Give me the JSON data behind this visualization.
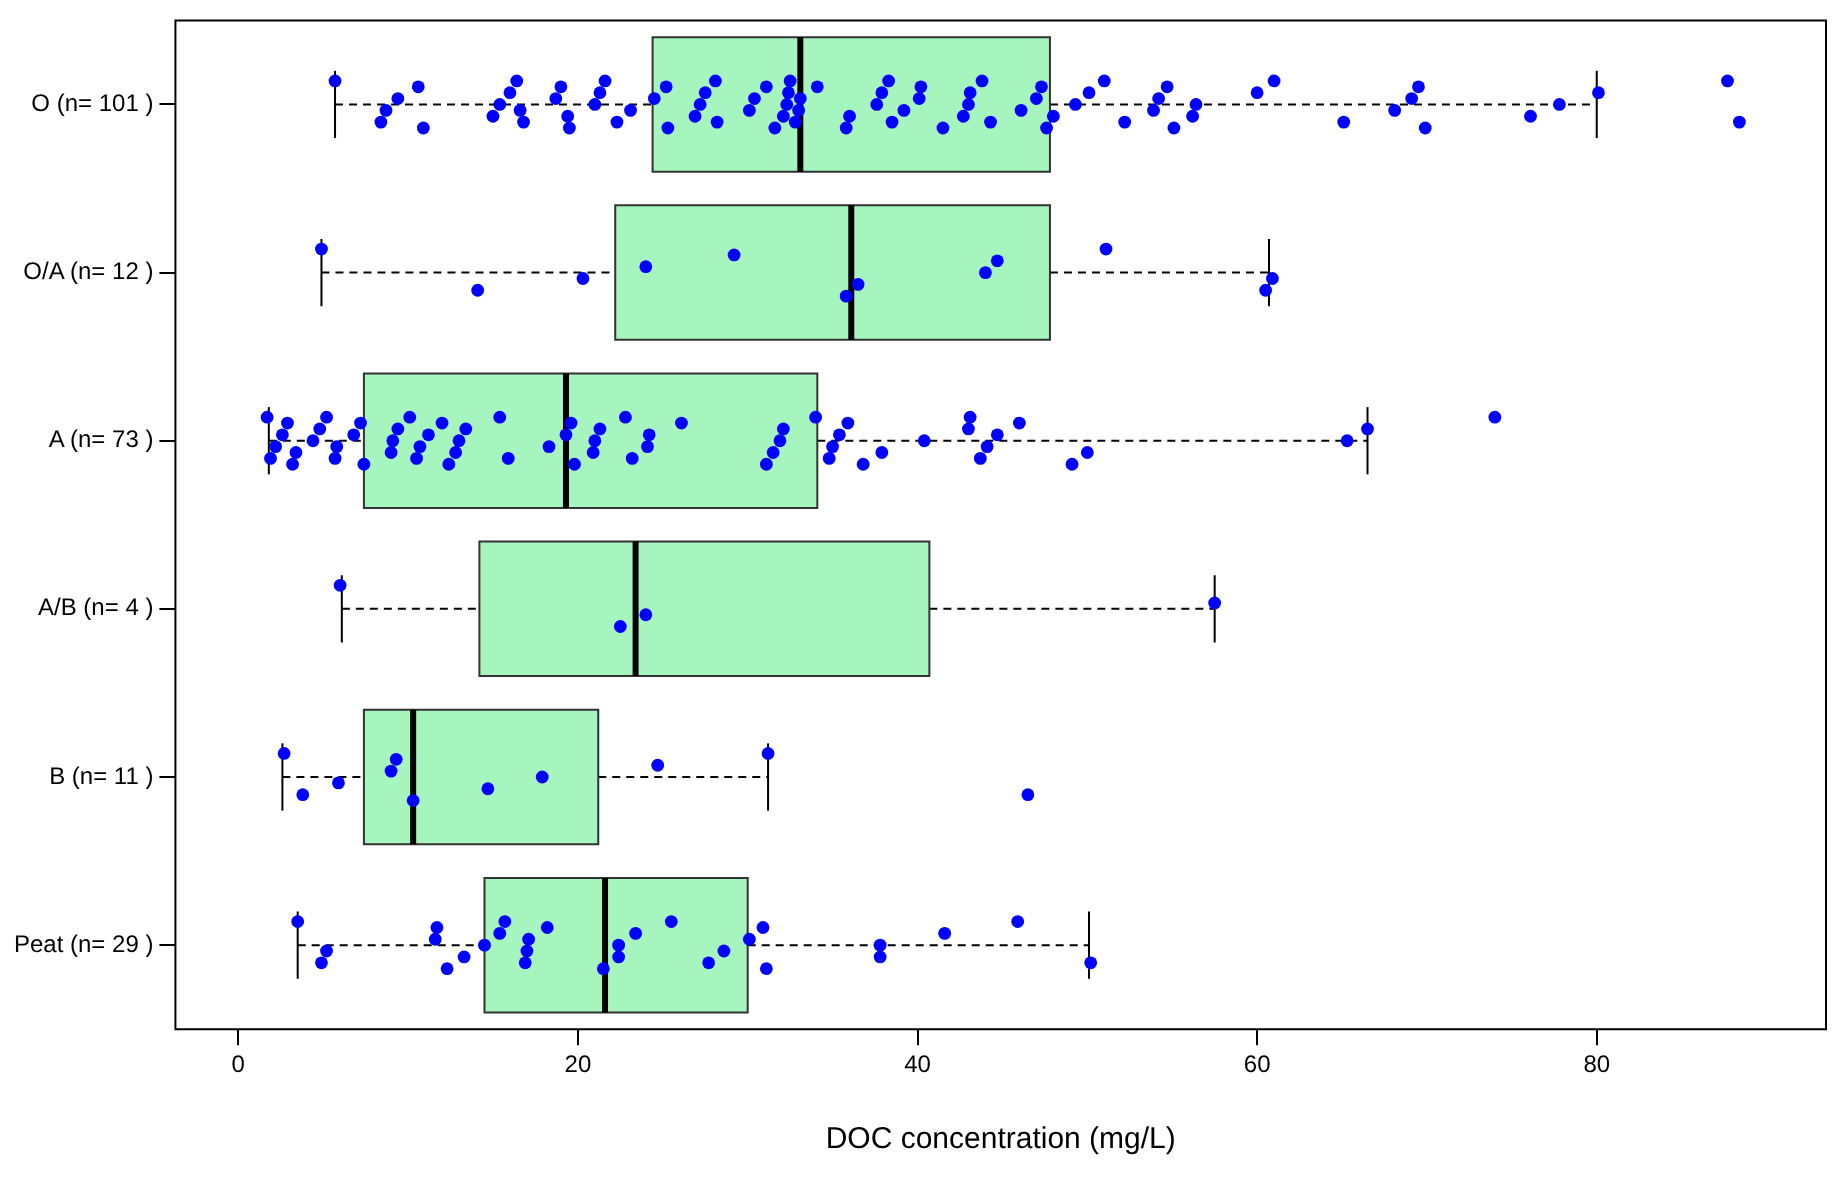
{
  "chart_data": {
    "type": "box",
    "orientation": "horizontal",
    "xlabel": "DOC concentration (mg/L)",
    "categories": [
      "O (n= 101 )",
      "O/A (n= 12 )",
      "A (n= 73 )",
      "A/B (n= 4 )",
      "B (n= 11 )",
      "Peat (n= 29 )"
    ],
    "color": "#a6f5be",
    "xlim": [
      -3.7,
      93.5
    ],
    "xticks": [
      0,
      20,
      40,
      60,
      80
    ],
    "grid": false,
    "marker": "circle",
    "boxes": [
      {
        "low": 5.7,
        "q1": 24.4,
        "median": 33.1,
        "q3": 47.8,
        "high": 80
      },
      {
        "low": 4.9,
        "q1": 22.2,
        "median": 36.1,
        "q3": 47.8,
        "high": 60.7
      },
      {
        "low": 1.8,
        "q1": 7.4,
        "median": 19.3,
        "q3": 34.1,
        "high": 66.5
      },
      {
        "low": 6.1,
        "q1": 14.2,
        "median": 23.4,
        "q3": 40.7,
        "high": 57.5
      },
      {
        "low": 2.6,
        "q1": 7.4,
        "median": 10.3,
        "q3": 21.2,
        "high": 31.2
      },
      {
        "low": 3.5,
        "q1": 14.5,
        "median": 21.6,
        "q3": 30.0,
        "high": 50.1
      }
    ],
    "series": [
      {
        "type": "scatter",
        "color": "#0000ff",
        "x": [
          "O (n= 101 )",
          "O (n= 101 )",
          "O (n= 101 )",
          "O (n= 101 )",
          "O (n= 101 )",
          "O (n= 101 )",
          "O (n= 101 )",
          "O (n= 101 )",
          "O (n= 101 )",
          "O (n= 101 )",
          "O (n= 101 )",
          "O (n= 101 )",
          "O (n= 101 )",
          "O (n= 101 )",
          "O (n= 101 )",
          "O (n= 101 )",
          "O (n= 101 )",
          "O (n= 101 )",
          "O (n= 101 )",
          "O (n= 101 )",
          "O (n= 101 )",
          "O (n= 101 )",
          "O (n= 101 )",
          "O (n= 101 )",
          "O (n= 101 )",
          "O (n= 101 )",
          "O (n= 101 )",
          "O (n= 101 )",
          "O (n= 101 )",
          "O (n= 101 )",
          "O (n= 101 )",
          "O (n= 101 )",
          "O (n= 101 )",
          "O (n= 101 )",
          "O (n= 101 )",
          "O (n= 101 )",
          "O (n= 101 )",
          "O (n= 101 )",
          "O (n= 101 )",
          "O (n= 101 )",
          "O (n= 101 )",
          "O (n= 101 )",
          "O (n= 101 )",
          "O (n= 101 )",
          "O (n= 101 )",
          "O (n= 101 )",
          "O (n= 101 )",
          "O (n= 101 )",
          "O (n= 101 )",
          "O (n= 101 )",
          "O (n= 101 )",
          "O (n= 101 )",
          "O (n= 101 )",
          "O (n= 101 )",
          "O (n= 101 )",
          "O (n= 101 )",
          "O (n= 101 )",
          "O (n= 101 )",
          "O (n= 101 )",
          "O (n= 101 )",
          "O (n= 101 )",
          "O (n= 101 )",
          "O (n= 101 )",
          "O (n= 101 )",
          "O (n= 101 )",
          "O (n= 101 )",
          "O (n= 101 )",
          "O (n= 101 )",
          "O (n= 101 )",
          "O (n= 101 )",
          "O (n= 101 )",
          "O (n= 101 )",
          "O (n= 101 )",
          "O (n= 101 )",
          "O (n= 101 )",
          "O (n= 101 )",
          "O (n= 101 )",
          "O (n= 101 )",
          "O (n= 101 )",
          "O (n= 101 )",
          "O (n= 101 )",
          "O (n= 101 )",
          "O (n= 101 )"
        ],
        "values": [
          5.7,
          8.4,
          8.7,
          9.4,
          10.6,
          10.9,
          15.0,
          15.4,
          16.0,
          16.4,
          16.8,
          16.6,
          18.7,
          19.0,
          19.5,
          19.4,
          21.0,
          21.3,
          21.6,
          22.3,
          23.1,
          24.5,
          25.2,
          25.3,
          26.9,
          27.2,
          27.5,
          28.1,
          28.2,
          30.1,
          30.4,
          31.1,
          31.6,
          32.1,
          32.3,
          32.4,
          32.5,
          32.8,
          33.0,
          33.1,
          34.1,
          35.8,
          36.0,
          37.6,
          37.9,
          38.3,
          38.5,
          39.2,
          40.1,
          40.2,
          41.5,
          42.7,
          43.0,
          43.1,
          43.8,
          44.3,
          46.1,
          47.0,
          47.3,
          47.6,
          48.0,
          49.3,
          50.1,
          51.0,
          52.2,
          53.9,
          54.2,
          54.7,
          55.1,
          56.2,
          56.4,
          60.0,
          61.0,
          65.1,
          68.1,
          69.1,
          69.5,
          69.9,
          76.1,
          77.8,
          80.1,
          87.7,
          88.4
        ]
      },
      {
        "type": "scatter",
        "color": "#0000ff",
        "x": [
          "O/A (n= 12 )",
          "O/A (n= 12 )",
          "O/A (n= 12 )",
          "O/A (n= 12 )",
          "O/A (n= 12 )",
          "O/A (n= 12 )",
          "O/A (n= 12 )",
          "O/A (n= 12 )",
          "O/A (n= 12 )",
          "O/A (n= 12 )",
          "O/A (n= 12 )",
          "O/A (n= 12 )"
        ],
        "values": [
          4.9,
          14.1,
          20.3,
          24.0,
          29.2,
          35.8,
          36.5,
          44.0,
          44.7,
          51.1,
          60.5,
          60.9
        ]
      },
      {
        "type": "scatter",
        "color": "#0000ff",
        "x": [
          "A (n= 73 )",
          "A (n= 73 )",
          "A (n= 73 )",
          "A (n= 73 )",
          "A (n= 73 )",
          "A (n= 73 )",
          "A (n= 73 )",
          "A (n= 73 )",
          "A (n= 73 )",
          "A (n= 73 )",
          "A (n= 73 )",
          "A (n= 73 )",
          "A (n= 73 )",
          "A (n= 73 )",
          "A (n= 73 )",
          "A (n= 73 )",
          "A (n= 73 )",
          "A (n= 73 )",
          "A (n= 73 )",
          "A (n= 73 )",
          "A (n= 73 )",
          "A (n= 73 )",
          "A (n= 73 )",
          "A (n= 73 )",
          "A (n= 73 )",
          "A (n= 73 )",
          "A (n= 73 )",
          "A (n= 73 )",
          "A (n= 73 )",
          "A (n= 73 )",
          "A (n= 73 )",
          "A (n= 73 )",
          "A (n= 73 )",
          "A (n= 73 )",
          "A (n= 73 )",
          "A (n= 73 )",
          "A (n= 73 )",
          "A (n= 73 )",
          "A (n= 73 )",
          "A (n= 73 )",
          "A (n= 73 )",
          "A (n= 73 )",
          "A (n= 73 )",
          "A (n= 73 )",
          "A (n= 73 )",
          "A (n= 73 )",
          "A (n= 73 )",
          "A (n= 73 )",
          "A (n= 73 )",
          "A (n= 73 )",
          "A (n= 73 )",
          "A (n= 73 )",
          "A (n= 73 )",
          "A (n= 73 )",
          "A (n= 73 )",
          "A (n= 73 )",
          "A (n= 73 )",
          "A (n= 73 )",
          "A (n= 73 )",
          "A (n= 73 )",
          "A (n= 73 )",
          "A (n= 73 )",
          "A (n= 73 )",
          "A (n= 73 )"
        ],
        "values": [
          1.7,
          1.9,
          2.2,
          2.6,
          2.9,
          3.2,
          3.4,
          4.4,
          4.8,
          5.2,
          5.7,
          5.8,
          6.8,
          7.2,
          7.4,
          9.0,
          9.1,
          9.4,
          10.1,
          10.5,
          10.7,
          11.2,
          12.0,
          12.4,
          12.8,
          13.0,
          13.4,
          15.4,
          15.9,
          18.3,
          19.3,
          19.6,
          19.8,
          20.9,
          21.0,
          21.3,
          22.8,
          23.2,
          24.1,
          24.2,
          26.1,
          31.1,
          31.5,
          31.9,
          32.1,
          34.0,
          34.8,
          35.0,
          35.4,
          35.9,
          36.8,
          37.9,
          40.4,
          43.0,
          43.1,
          43.7,
          44.1,
          44.7,
          46.0,
          49.1,
          50.0,
          65.3,
          66.5,
          74.0
        ]
      },
      {
        "type": "scatter",
        "color": "#0000ff",
        "x": [
          "A/B (n= 4 )",
          "A/B (n= 4 )",
          "A/B (n= 4 )",
          "A/B (n= 4 )"
        ],
        "values": [
          6.0,
          22.5,
          24.0,
          57.5
        ]
      },
      {
        "type": "scatter",
        "color": "#0000ff",
        "x": [
          "B (n= 11 )",
          "B (n= 11 )",
          "B (n= 11 )",
          "B (n= 11 )",
          "B (n= 11 )",
          "B (n= 11 )",
          "B (n= 11 )",
          "B (n= 11 )",
          "B (n= 11 )",
          "B (n= 11 )",
          "B (n= 11 )"
        ],
        "values": [
          2.7,
          3.8,
          5.9,
          9.0,
          9.3,
          10.3,
          14.7,
          17.9,
          24.7,
          31.2,
          46.5
        ]
      },
      {
        "type": "scatter",
        "color": "#0000ff",
        "x": [
          "Peat (n= 29 )",
          "Peat (n= 29 )",
          "Peat (n= 29 )",
          "Peat (n= 29 )",
          "Peat (n= 29 )",
          "Peat (n= 29 )",
          "Peat (n= 29 )",
          "Peat (n= 29 )",
          "Peat (n= 29 )",
          "Peat (n= 29 )",
          "Peat (n= 29 )",
          "Peat (n= 29 )",
          "Peat (n= 29 )",
          "Peat (n= 29 )",
          "Peat (n= 29 )",
          "Peat (n= 29 )",
          "Peat (n= 29 )",
          "Peat (n= 29 )",
          "Peat (n= 29 )",
          "Peat (n= 29 )",
          "Peat (n= 29 )",
          "Peat (n= 29 )",
          "Peat (n= 29 )",
          "Peat (n= 29 )",
          "Peat (n= 29 )",
          "Peat (n= 29 )",
          "Peat (n= 29 )",
          "Peat (n= 29 )",
          "Peat (n= 29 )"
        ],
        "values": [
          3.5,
          4.9,
          5.2,
          11.6,
          11.7,
          12.3,
          13.3,
          14.5,
          15.4,
          15.7,
          16.9,
          17.0,
          17.1,
          18.2,
          21.5,
          22.4,
          22.4,
          23.4,
          25.5,
          27.7,
          28.6,
          30.1,
          30.9,
          31.1,
          37.8,
          37.8,
          41.6,
          45.9,
          50.2
        ]
      }
    ]
  }
}
